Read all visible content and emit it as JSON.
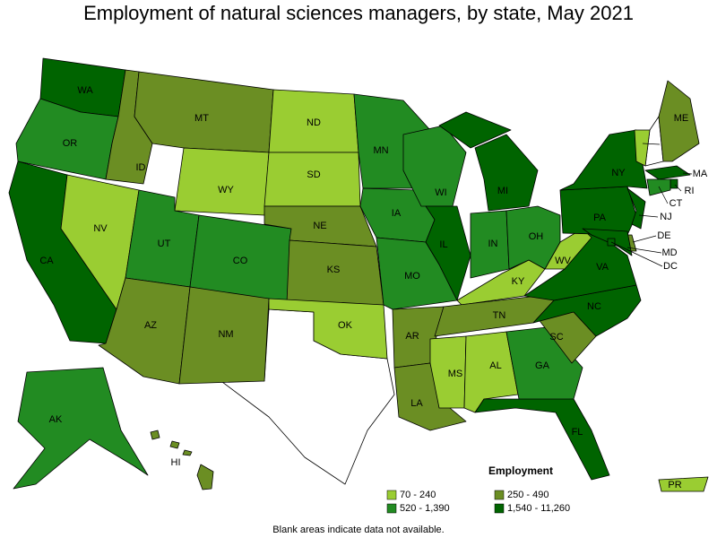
{
  "title": "Employment of natural sciences managers, by state, May 2021",
  "legend": {
    "title": "Employment",
    "items": [
      {
        "label": "70 - 240",
        "color": "#9acd32"
      },
      {
        "label": "250 - 490",
        "color": "#6b8e23"
      },
      {
        "label": "520 - 1,390",
        "color": "#228b22"
      },
      {
        "label": "1,540 - 11,260",
        "color": "#006400"
      }
    ]
  },
  "states": [
    {
      "label": "WA",
      "class": 3
    },
    {
      "label": "OR",
      "class": 2
    },
    {
      "label": "CA",
      "class": 3
    },
    {
      "label": "NV",
      "class": 0
    },
    {
      "label": "ID",
      "class": 1
    },
    {
      "label": "MT",
      "class": 1
    },
    {
      "label": "WY",
      "class": 0
    },
    {
      "label": "UT",
      "class": 2
    },
    {
      "label": "CO",
      "class": 2
    },
    {
      "label": "AZ",
      "class": 1
    },
    {
      "label": "NM",
      "class": 1
    },
    {
      "label": "ND",
      "class": 0
    },
    {
      "label": "SD",
      "class": 0
    },
    {
      "label": "NE",
      "class": 1
    },
    {
      "label": "KS",
      "class": 1
    },
    {
      "label": "OK",
      "class": 0
    },
    {
      "label": "MN",
      "class": 2
    },
    {
      "label": "IA",
      "class": 2
    },
    {
      "label": "MO",
      "class": 2
    },
    {
      "label": "AR",
      "class": 1
    },
    {
      "label": "LA",
      "class": 1
    },
    {
      "label": "WI",
      "class": 2
    },
    {
      "label": "IL",
      "class": 3
    },
    {
      "label": "MS",
      "class": 0
    },
    {
      "label": "MI",
      "class": 3
    },
    {
      "label": "IN",
      "class": 2
    },
    {
      "label": "KY",
      "class": 0
    },
    {
      "label": "TN",
      "class": 1
    },
    {
      "label": "AL",
      "class": 0
    },
    {
      "label": "GA",
      "class": 2
    },
    {
      "label": "FL",
      "class": 3
    },
    {
      "label": "SC",
      "class": 1
    },
    {
      "label": "NC",
      "class": 3
    },
    {
      "label": "VA",
      "class": 3
    },
    {
      "label": "WV",
      "class": 0
    },
    {
      "label": "OH",
      "class": 2
    },
    {
      "label": "PA",
      "class": 3
    },
    {
      "label": "NY",
      "class": 3
    },
    {
      "label": "VT",
      "class": 0
    },
    {
      "label": "ME",
      "class": 1
    },
    {
      "label": "MA",
      "class": 3
    },
    {
      "label": "RI",
      "class": 3
    },
    {
      "label": "CT",
      "class": 2
    },
    {
      "label": "NJ",
      "class": 3
    },
    {
      "label": "DE",
      "class": 1
    },
    {
      "label": "MD",
      "class": 3
    },
    {
      "label": "DC",
      "class": 3
    },
    {
      "label": "AK",
      "class": 2
    },
    {
      "label": "HI",
      "class": 1
    },
    {
      "label": "PR",
      "class": 0
    }
  ],
  "footnote": "Blank areas indicate data not available."
}
